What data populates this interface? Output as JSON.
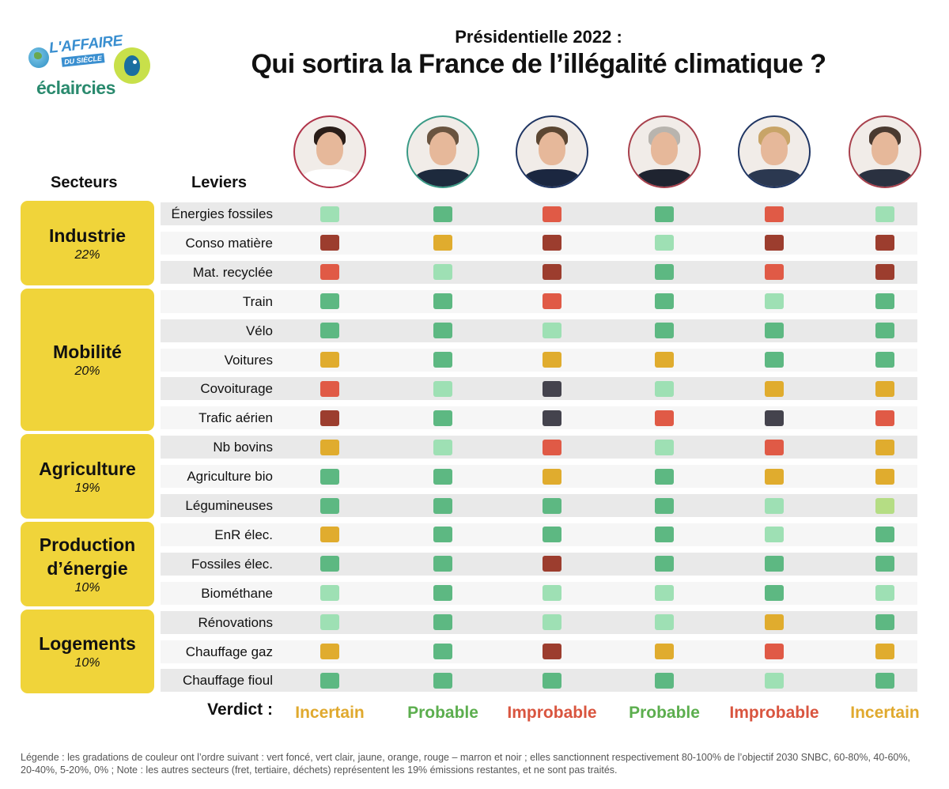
{
  "header": {
    "logo_affaire_1": "L'AFFAIRE",
    "logo_affaire_2": "DU SIÈCLE",
    "logo_eclaircies": "éclaircies",
    "title_small": "Présidentielle 2022 :",
    "title_big": "Qui sortira la France de l’illégalité climatique ?"
  },
  "columns": {
    "secteurs": "Secteurs",
    "leviers": "Leviers"
  },
  "colors": {
    "vert_fonce": "#5db882",
    "vert_clair": "#9ee0b4",
    "vert_jaune": "#b5dd84",
    "jaune": "#e0ac2e",
    "orange_rouge": "#e05a46",
    "marron": "#9c3d2e",
    "noir": "#44434d",
    "sector_bg": "#f0d43a",
    "row_bg_dark": "#e9e9e9",
    "row_bg_light": "#f6f6f6",
    "verdict_incertain": "#e0a92e",
    "verdict_probable": "#5cae4e",
    "verdict_improbable": "#d9553f"
  },
  "candidates": [
    {
      "ring": "#b0344a",
      "hair": "#2a1d18",
      "suit": "#ffffff"
    },
    {
      "ring": "#3a9a86",
      "hair": "#6a5440",
      "suit": "#1d2a3d"
    },
    {
      "ring": "#1f3563",
      "hair": "#5b4632",
      "suit": "#1b2740"
    },
    {
      "ring": "#a8404c",
      "hair": "#b8b4ae",
      "suit": "#1f2430"
    },
    {
      "ring": "#1f3563",
      "hair": "#c8a468",
      "suit": "#2b3850"
    },
    {
      "ring": "#a8404c",
      "hair": "#4a3a30",
      "suit": "#2a3140"
    }
  ],
  "sectors": [
    {
      "name": "Industrie",
      "pct": "22%"
    },
    {
      "name": "Mobilité",
      "pct": "20%"
    },
    {
      "name": "Agriculture",
      "pct": "19%"
    },
    {
      "name": "Production d’énergie",
      "pct": "10%"
    },
    {
      "name": "Logements",
      "pct": "10%"
    }
  ],
  "chart_data": {
    "type": "heatmap",
    "title": "Qui sortira la France de l’illégalité climatique ?",
    "subtitle": "Présidentielle 2022 :",
    "scale": [
      "vert_fonce",
      "vert_clair",
      "jaune",
      "orange_rouge",
      "marron",
      "noir"
    ],
    "rows": [
      {
        "sector": "Industrie",
        "lever": "Énergies fossiles",
        "values": [
          "vert_clair",
          "vert_fonce",
          "orange_rouge",
          "vert_fonce",
          "orange_rouge",
          "vert_clair"
        ]
      },
      {
        "sector": "Industrie",
        "lever": "Conso matière",
        "values": [
          "marron",
          "jaune",
          "marron",
          "vert_clair",
          "marron",
          "marron"
        ]
      },
      {
        "sector": "Industrie",
        "lever": "Mat. recyclée",
        "values": [
          "orange_rouge",
          "vert_clair",
          "marron",
          "vert_fonce",
          "orange_rouge",
          "marron"
        ]
      },
      {
        "sector": "Mobilité",
        "lever": "Train",
        "values": [
          "vert_fonce",
          "vert_fonce",
          "orange_rouge",
          "vert_fonce",
          "vert_clair",
          "vert_fonce"
        ]
      },
      {
        "sector": "Mobilité",
        "lever": "Vélo",
        "values": [
          "vert_fonce",
          "vert_fonce",
          "vert_clair",
          "vert_fonce",
          "vert_fonce",
          "vert_fonce"
        ]
      },
      {
        "sector": "Mobilité",
        "lever": "Voitures",
        "values": [
          "jaune",
          "vert_fonce",
          "jaune",
          "jaune",
          "vert_fonce",
          "vert_fonce"
        ]
      },
      {
        "sector": "Mobilité",
        "lever": "Covoiturage",
        "values": [
          "orange_rouge",
          "vert_clair",
          "noir",
          "vert_clair",
          "jaune",
          "jaune"
        ]
      },
      {
        "sector": "Mobilité",
        "lever": "Trafic aérien",
        "values": [
          "marron",
          "vert_fonce",
          "noir",
          "orange_rouge",
          "noir",
          "orange_rouge"
        ]
      },
      {
        "sector": "Agriculture",
        "lever": "Nb bovins",
        "values": [
          "jaune",
          "vert_clair",
          "orange_rouge",
          "vert_clair",
          "orange_rouge",
          "jaune"
        ]
      },
      {
        "sector": "Agriculture",
        "lever": "Agriculture bio",
        "values": [
          "vert_fonce",
          "vert_fonce",
          "jaune",
          "vert_fonce",
          "jaune",
          "jaune"
        ]
      },
      {
        "sector": "Agriculture",
        "lever": "Légumineuses",
        "values": [
          "vert_fonce",
          "vert_fonce",
          "vert_fonce",
          "vert_fonce",
          "vert_clair",
          "vert_jaune"
        ]
      },
      {
        "sector": "Production d’énergie",
        "lever": "EnR élec.",
        "values": [
          "jaune",
          "vert_fonce",
          "vert_fonce",
          "vert_fonce",
          "vert_clair",
          "vert_fonce"
        ]
      },
      {
        "sector": "Production d’énergie",
        "lever": "Fossiles élec.",
        "values": [
          "vert_fonce",
          "vert_fonce",
          "marron",
          "vert_fonce",
          "vert_fonce",
          "vert_fonce"
        ]
      },
      {
        "sector": "Production d’énergie",
        "lever": "Biométhane",
        "values": [
          "vert_clair",
          "vert_fonce",
          "vert_clair",
          "vert_clair",
          "vert_fonce",
          "vert_clair"
        ]
      },
      {
        "sector": "Logements",
        "lever": "Rénovations",
        "values": [
          "vert_clair",
          "vert_fonce",
          "vert_clair",
          "vert_clair",
          "jaune",
          "vert_fonce"
        ]
      },
      {
        "sector": "Logements",
        "lever": "Chauffage gaz",
        "values": [
          "jaune",
          "vert_fonce",
          "marron",
          "jaune",
          "orange_rouge",
          "jaune"
        ]
      },
      {
        "sector": "Logements",
        "lever": "Chauffage fioul",
        "values": [
          "vert_fonce",
          "vert_fonce",
          "vert_fonce",
          "vert_fonce",
          "vert_clair",
          "vert_fonce"
        ]
      }
    ],
    "verdict_label": "Verdict :",
    "verdicts": [
      {
        "text": "Incertain",
        "kind": "incertain"
      },
      {
        "text": "Probable",
        "kind": "probable"
      },
      {
        "text": "Improbable",
        "kind": "improbable"
      },
      {
        "text": "Probable",
        "kind": "probable"
      },
      {
        "text": "Improbable",
        "kind": "improbable"
      },
      {
        "text": "Incertain",
        "kind": "incertain"
      }
    ]
  },
  "legend": "Légende : les gradations de couleur ont l’ordre suivant : vert foncé, vert clair, jaune, orange, rouge – marron et noir ; elles sanctionnent respectivement 80-100% de l’objectif 2030 SNBC, 60-80%, 40-60%, 20-40%, 5-20%, 0% ; Note : les autres secteurs (fret, tertiaire, déchets) représentent les 19% émissions restantes, et ne sont pas traités."
}
